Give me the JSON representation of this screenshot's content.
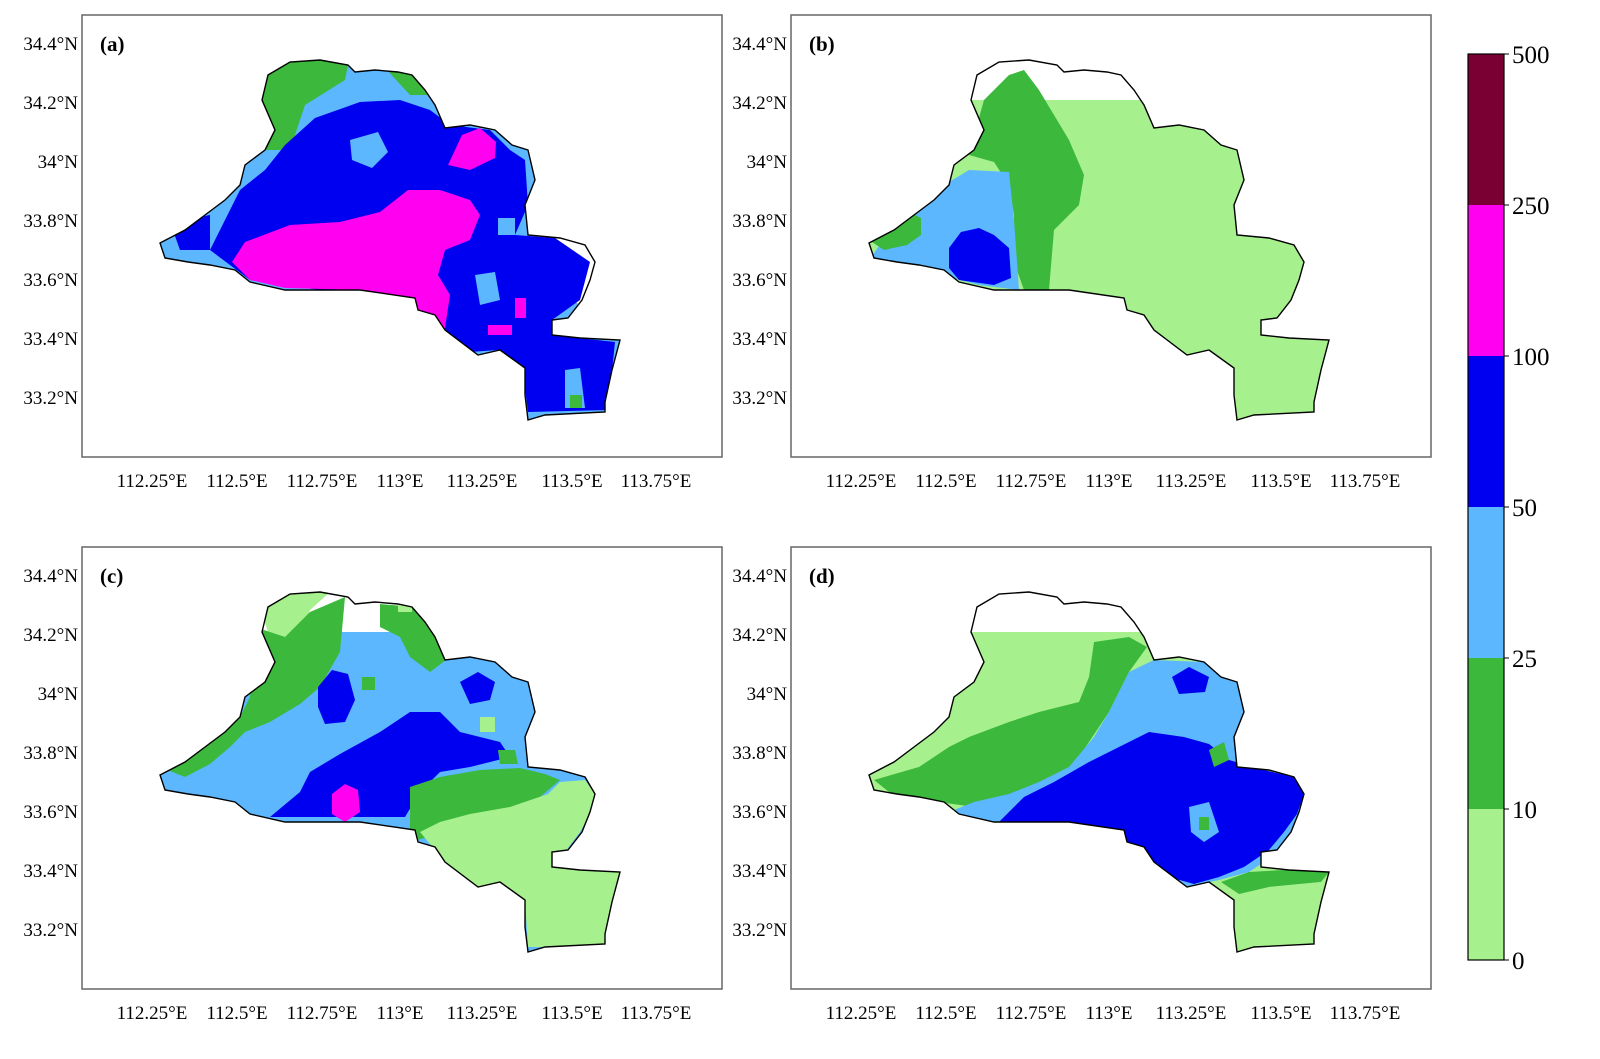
{
  "colors": {
    "light_green": "#a6f08e",
    "green": "#3cb83c",
    "light_blue": "#5cb7ff",
    "blue": "#0000f0",
    "magenta": "#ff00f0",
    "dark_red": "#7a0033"
  },
  "panels": [
    {
      "label": "(a)",
      "regions": [
        "0-10",
        "10-25",
        "25-50",
        "50-100",
        "100-250"
      ]
    },
    {
      "label": "(b)",
      "regions": [
        "0-10",
        "10-25",
        "25-50",
        "50-100"
      ]
    },
    {
      "label": "(c)",
      "regions": [
        "0-10",
        "10-25",
        "25-50",
        "50-100",
        "100-250"
      ]
    },
    {
      "label": "(d)",
      "regions": [
        "0-10",
        "10-25",
        "25-50",
        "50-100"
      ]
    }
  ],
  "axes": {
    "x_ticks": [
      "112.25°E",
      "112.5°E",
      "112.75°E",
      "113°E",
      "113.25°E",
      "113.5°E",
      "113.75°E"
    ],
    "y_ticks": [
      "34.4°N",
      "34.2°N",
      "34°N",
      "33.8°N",
      "33.6°N",
      "33.4°N",
      "33.2°N"
    ]
  },
  "colorbar": {
    "bins": [
      {
        "from": 0,
        "to": 10,
        "color": "#a6f08e"
      },
      {
        "from": 10,
        "to": 25,
        "color": "#3cb83c"
      },
      {
        "from": 25,
        "to": 50,
        "color": "#5cb7ff"
      },
      {
        "from": 50,
        "to": 100,
        "color": "#0000f0"
      },
      {
        "from": 100,
        "to": 250,
        "color": "#ff00f0"
      },
      {
        "from": 250,
        "to": 500,
        "color": "#7a0033"
      }
    ],
    "labels": [
      "0",
      "10",
      "25",
      "50",
      "100",
      "250",
      "500"
    ]
  }
}
